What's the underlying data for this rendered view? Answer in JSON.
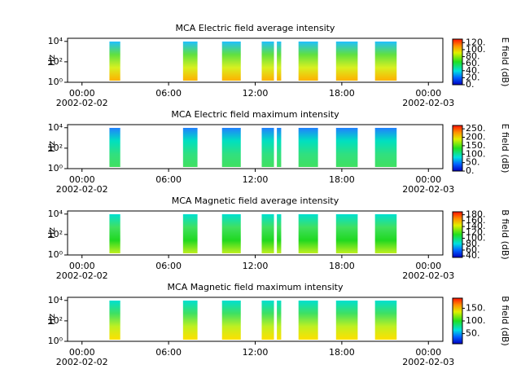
{
  "chart_data": [
    {
      "type": "spectrogram",
      "title": "MCA  Electric field average intensity",
      "y_label": "Hz",
      "colorbar_label": "E field (dB)",
      "log_y": true,
      "xlim": [
        -1,
        25
      ],
      "ylim": [
        1,
        20000
      ],
      "xticks": [
        {
          "value": 0,
          "label": "00:00"
        },
        {
          "value": 6,
          "label": "06:00"
        },
        {
          "value": 12,
          "label": "12:00"
        },
        {
          "value": 18,
          "label": "18:00"
        },
        {
          "value": 24,
          "label": "00:00"
        }
      ],
      "x_dates": [
        {
          "value": 0,
          "label": "2002-02-02"
        },
        {
          "value": 24,
          "label": "2002-02-03"
        }
      ],
      "yticks": [
        {
          "value": 1,
          "label": "10⁰"
        },
        {
          "value": 100,
          "label": "10²"
        },
        {
          "value": 10000,
          "label": "10⁴"
        }
      ],
      "clim": [
        0,
        130
      ],
      "cticks": [
        {
          "value": 0,
          "label": "0."
        },
        {
          "value": 20,
          "label": "20."
        },
        {
          "value": 40,
          "label": "40."
        },
        {
          "value": 60,
          "label": "60."
        },
        {
          "value": 80,
          "label": "80."
        },
        {
          "value": 100,
          "label": "100."
        },
        {
          "value": 120,
          "label": "120."
        }
      ],
      "fill_colors": [
        "#20c0ff",
        "#60e040",
        "#d8f020",
        "#ffb000"
      ],
      "intervals": [
        [
          1.9,
          2.65
        ],
        [
          7.0,
          8.0
        ],
        [
          9.7,
          11.0
        ],
        [
          12.45,
          13.3
        ],
        [
          13.5,
          13.8
        ],
        [
          15.0,
          16.35
        ],
        [
          17.6,
          19.1
        ],
        [
          20.3,
          21.8
        ]
      ]
    },
    {
      "type": "spectrogram",
      "title": "MCA  Electric field maximum intensity",
      "y_label": "Hz",
      "colorbar_label": "E field (dB)",
      "log_y": true,
      "xlim": [
        -1,
        25
      ],
      "ylim": [
        1,
        20000
      ],
      "xticks": [
        {
          "value": 0,
          "label": "00:00"
        },
        {
          "value": 6,
          "label": "06:00"
        },
        {
          "value": 12,
          "label": "12:00"
        },
        {
          "value": 18,
          "label": "18:00"
        },
        {
          "value": 24,
          "label": "00:00"
        }
      ],
      "x_dates": [
        {
          "value": 0,
          "label": "2002-02-02"
        },
        {
          "value": 24,
          "label": "2002-02-03"
        }
      ],
      "yticks": [
        {
          "value": 1,
          "label": "10⁰"
        },
        {
          "value": 100,
          "label": "10²"
        },
        {
          "value": 10000,
          "label": "10⁴"
        }
      ],
      "clim": [
        0,
        270
      ],
      "cticks": [
        {
          "value": 0,
          "label": "0."
        },
        {
          "value": 50,
          "label": "50."
        },
        {
          "value": 100,
          "label": "100."
        },
        {
          "value": 150,
          "label": "150."
        },
        {
          "value": 200,
          "label": "200."
        },
        {
          "value": 250,
          "label": "250."
        }
      ],
      "fill_colors": [
        "#2080ff",
        "#00e0c0",
        "#30e080",
        "#40e060"
      ],
      "intervals": [
        [
          1.9,
          2.65
        ],
        [
          7.0,
          8.0
        ],
        [
          9.7,
          11.0
        ],
        [
          12.45,
          13.3
        ],
        [
          13.5,
          13.8
        ],
        [
          15.0,
          16.35
        ],
        [
          17.6,
          19.1
        ],
        [
          20.3,
          21.8
        ]
      ]
    },
    {
      "type": "spectrogram",
      "title": "MCA  Magnetic field average intensity",
      "y_label": "Hz",
      "colorbar_label": "B field (dB)",
      "log_y": true,
      "xlim": [
        -1,
        25
      ],
      "ylim": [
        1,
        20000
      ],
      "xticks": [
        {
          "value": 0,
          "label": "00:00"
        },
        {
          "value": 6,
          "label": "06:00"
        },
        {
          "value": 12,
          "label": "12:00"
        },
        {
          "value": 18,
          "label": "18:00"
        },
        {
          "value": 24,
          "label": "00:00"
        }
      ],
      "x_dates": [
        {
          "value": 0,
          "label": "2002-02-02"
        },
        {
          "value": 24,
          "label": "2002-02-03"
        }
      ],
      "yticks": [
        {
          "value": 1,
          "label": "10⁰"
        },
        {
          "value": 100,
          "label": "10²"
        },
        {
          "value": 10000,
          "label": "10⁴"
        }
      ],
      "clim": [
        35,
        190
      ],
      "cticks": [
        {
          "value": 40,
          "label": "40."
        },
        {
          "value": 60,
          "label": "60."
        },
        {
          "value": 80,
          "label": "80."
        },
        {
          "value": 100,
          "label": "100."
        },
        {
          "value": 120,
          "label": "120."
        },
        {
          "value": 140,
          "label": "140."
        },
        {
          "value": 160,
          "label": "160."
        },
        {
          "value": 180,
          "label": "180."
        }
      ],
      "fill_colors": [
        "#00e0d0",
        "#40e060",
        "#20d820",
        "#c0f020"
      ],
      "intervals": [
        [
          1.9,
          2.65
        ],
        [
          7.0,
          8.0
        ],
        [
          9.7,
          11.0
        ],
        [
          12.45,
          13.3
        ],
        [
          13.5,
          13.8
        ],
        [
          15.0,
          16.35
        ],
        [
          17.6,
          19.1
        ],
        [
          20.3,
          21.8
        ]
      ]
    },
    {
      "type": "spectrogram",
      "title": "MCA  Magnetic field maximum intensity",
      "y_label": "Hz",
      "colorbar_label": "B field (dB)",
      "log_y": true,
      "xlim": [
        -1,
        25
      ],
      "ylim": [
        1,
        20000
      ],
      "xticks": [
        {
          "value": 0,
          "label": "00:00"
        },
        {
          "value": 6,
          "label": "06:00"
        },
        {
          "value": 12,
          "label": "12:00"
        },
        {
          "value": 18,
          "label": "18:00"
        },
        {
          "value": 24,
          "label": "00:00"
        }
      ],
      "x_dates": [
        {
          "value": 0,
          "label": "2002-02-02"
        },
        {
          "value": 24,
          "label": "2002-02-03"
        }
      ],
      "yticks": [
        {
          "value": 1,
          "label": "10⁰"
        },
        {
          "value": 100,
          "label": "10²"
        },
        {
          "value": 10000,
          "label": "10⁴"
        }
      ],
      "clim": [
        10,
        190
      ],
      "cticks": [
        {
          "value": 50,
          "label": "50."
        },
        {
          "value": 100,
          "label": "100."
        },
        {
          "value": 150,
          "label": "150."
        }
      ],
      "fill_colors": [
        "#00e0d0",
        "#40e060",
        "#c0f020",
        "#ffe000"
      ],
      "intervals": [
        [
          1.9,
          2.65
        ],
        [
          7.0,
          8.0
        ],
        [
          9.7,
          11.0
        ],
        [
          12.45,
          13.3
        ],
        [
          13.5,
          13.8
        ],
        [
          15.0,
          16.35
        ],
        [
          17.6,
          19.1
        ],
        [
          20.3,
          21.8
        ]
      ]
    }
  ]
}
